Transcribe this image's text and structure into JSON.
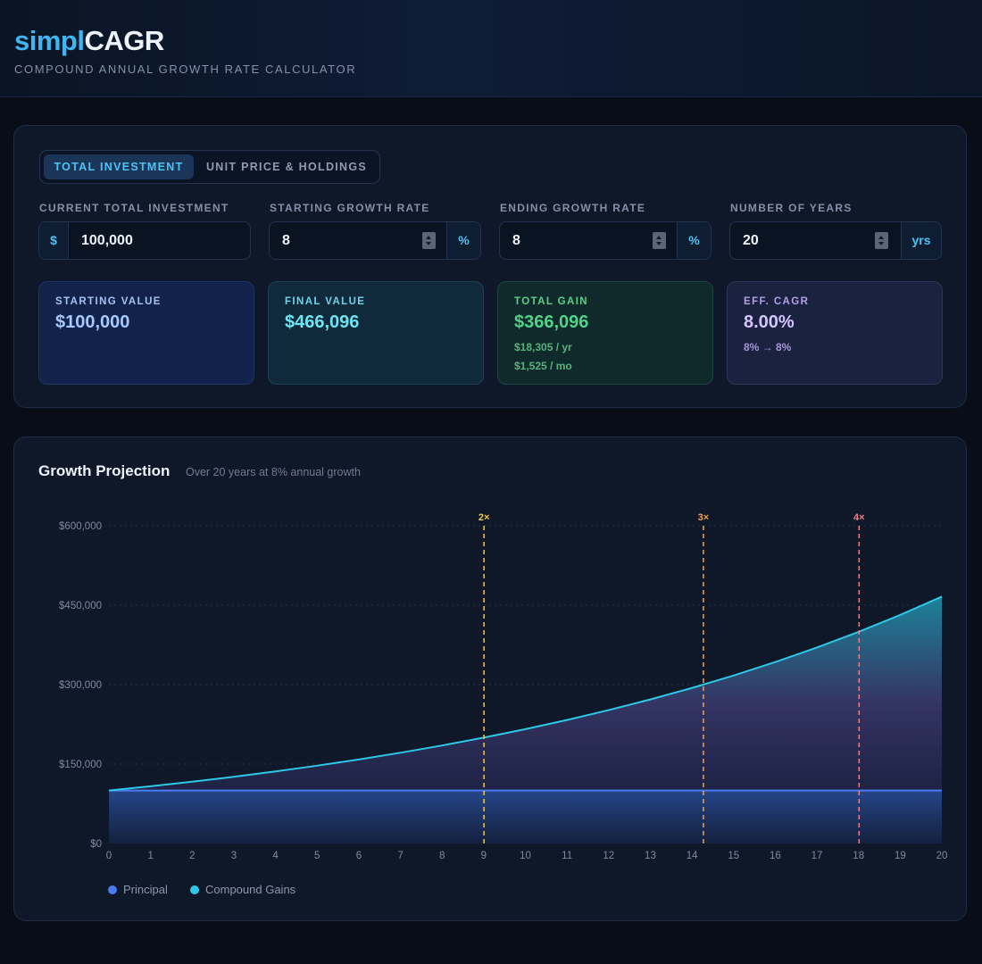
{
  "app": {
    "logo_part1": "simpl",
    "logo_part2": "CAGR",
    "tagline": "COMPOUND ANNUAL GROWTH RATE CALCULATOR"
  },
  "tabs": [
    {
      "label": "TOTAL INVESTMENT",
      "active": true
    },
    {
      "label": "UNIT PRICE & HOLDINGS",
      "active": false
    }
  ],
  "fields": {
    "investment": {
      "label": "CURRENT TOTAL INVESTMENT",
      "prefix": "$",
      "value": "100,000"
    },
    "start_rate": {
      "label": "STARTING GROWTH RATE",
      "value": "8",
      "suffix": "%"
    },
    "end_rate": {
      "label": "ENDING GROWTH RATE",
      "value": "8",
      "suffix": "%"
    },
    "years": {
      "label": "NUMBER OF YEARS",
      "value": "20",
      "suffix": "yrs"
    }
  },
  "cards": {
    "starting": {
      "title": "STARTING VALUE",
      "value": "$100,000"
    },
    "final": {
      "title": "FINAL VALUE",
      "value": "$466,096"
    },
    "gain": {
      "title": "TOTAL GAIN",
      "value": "$366,096",
      "per_year": "$18,305 / yr",
      "per_month": "$1,525 / mo"
    },
    "cagr": {
      "title": "EFF. CAGR",
      "value": "8.00%",
      "range": "8% → 8%"
    }
  },
  "chart": {
    "title": "Growth Projection",
    "subtitle": "Over 20 years at 8% annual growth"
  },
  "chart_data": {
    "type": "area",
    "x": [
      0,
      1,
      2,
      3,
      4,
      5,
      6,
      7,
      8,
      9,
      10,
      11,
      12,
      13,
      14,
      15,
      16,
      17,
      18,
      19,
      20
    ],
    "xticks": [
      "0",
      "1",
      "2",
      "3",
      "4",
      "5",
      "6",
      "7",
      "8",
      "9",
      "10",
      "11",
      "12",
      "13",
      "14",
      "15",
      "16",
      "17",
      "18",
      "19",
      "20"
    ],
    "yticks": [
      "$0",
      "$150,000",
      "$300,000",
      "$450,000",
      "$600,000"
    ],
    "ytick_values": [
      0,
      150000,
      300000,
      450000,
      600000
    ],
    "ylim": [
      0,
      600000
    ],
    "xlim": [
      0,
      20
    ],
    "grid": true,
    "legend_position": "bottom-left",
    "series": [
      {
        "name": "Principal",
        "color": "#4a7cf0",
        "values": [
          100000,
          100000,
          100000,
          100000,
          100000,
          100000,
          100000,
          100000,
          100000,
          100000,
          100000,
          100000,
          100000,
          100000,
          100000,
          100000,
          100000,
          100000,
          100000,
          100000,
          100000
        ]
      },
      {
        "name": "Compound Gains",
        "color": "#2ec8e6",
        "values": [
          100000,
          108000,
          116640,
          125971,
          136049,
          146933,
          158687,
          171382,
          185093,
          199900,
          215892,
          233164,
          251817,
          271962,
          293719,
          317217,
          342594,
          370002,
          399602,
          431570,
          466096
        ]
      }
    ],
    "markers": [
      {
        "label": "2×",
        "x": 9.006,
        "color": "#f2c84b"
      },
      {
        "label": "3×",
        "x": 14.275,
        "color": "#f0a24c"
      },
      {
        "label": "4×",
        "x": 18.013,
        "color": "#ef7f86"
      }
    ]
  }
}
